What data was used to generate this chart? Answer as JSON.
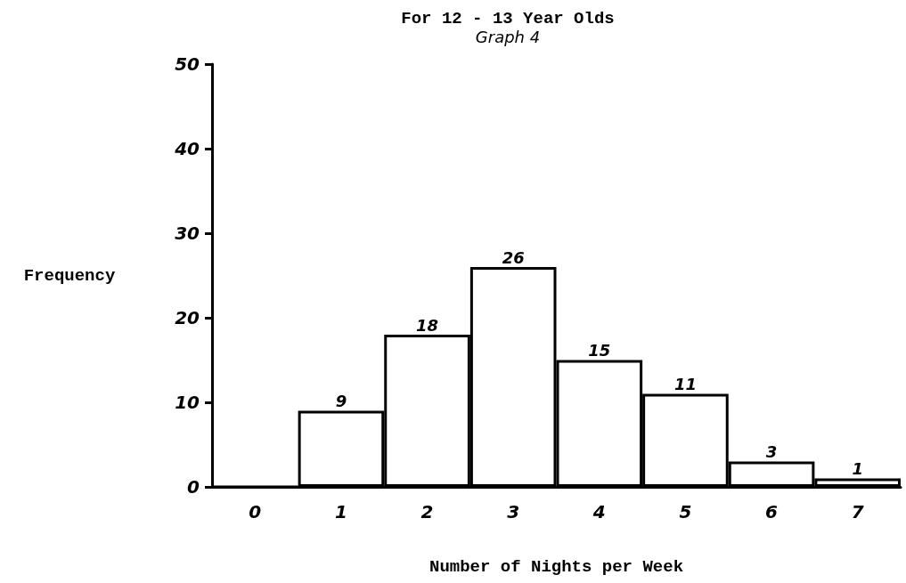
{
  "chart_data": {
    "type": "bar",
    "title": "For 12 - 13 Year Olds",
    "subtitle": "Graph 4",
    "xlabel": "Number of Nights per Week",
    "ylabel": "Frequency",
    "categories": [
      "0",
      "1",
      "2",
      "3",
      "4",
      "5",
      "6",
      "7"
    ],
    "values": [
      0,
      9,
      18,
      26,
      15,
      11,
      3,
      1
    ],
    "value_labels": [
      null,
      "9",
      "18",
      "26",
      "15",
      "11",
      "3",
      "1"
    ],
    "color": "#ffffff",
    "ylim": [
      0,
      50
    ],
    "yticks": [
      0,
      10,
      20,
      30,
      40,
      50
    ],
    "grid": false
  }
}
